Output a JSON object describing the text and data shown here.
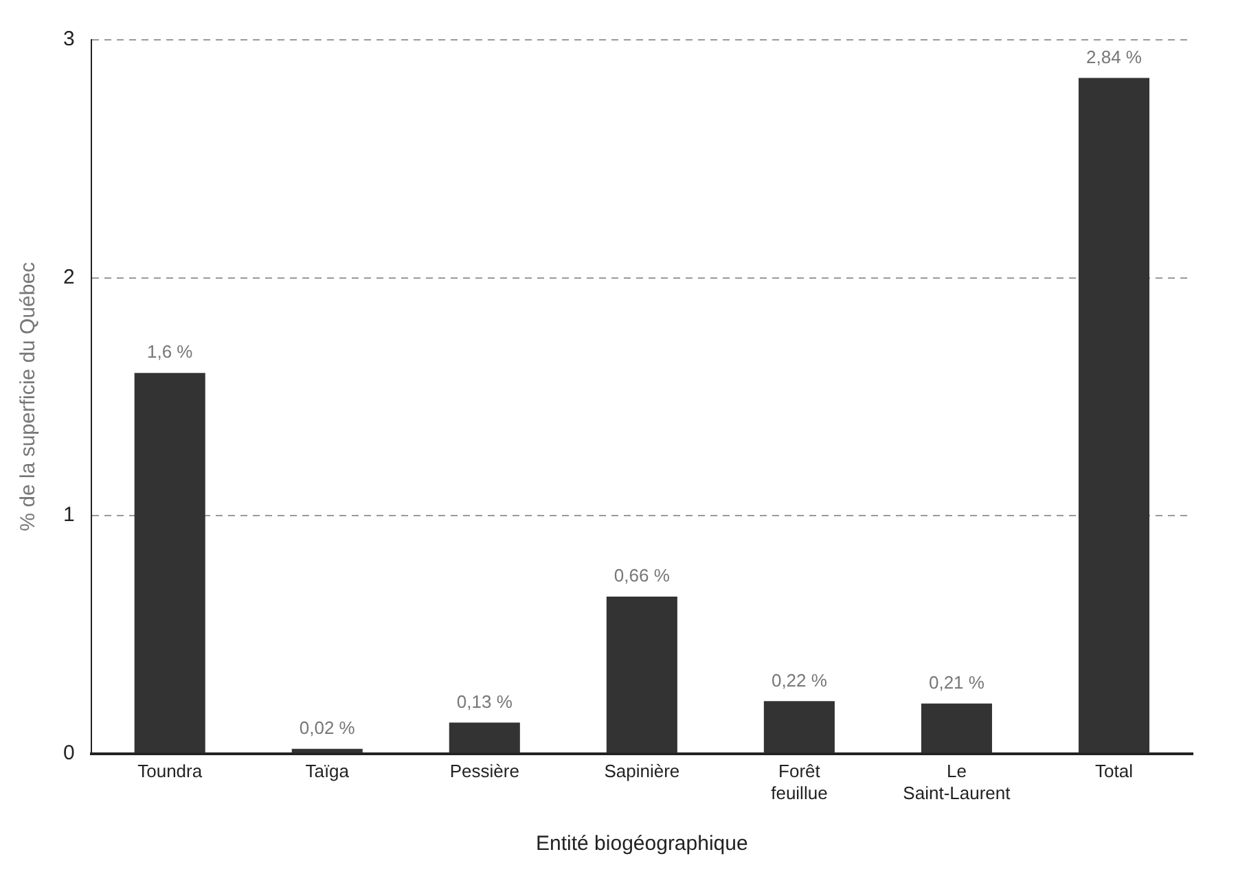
{
  "chart_data": {
    "type": "bar",
    "xlabel": "Entité biogéographique",
    "ylabel": "% de la superficie du Québec",
    "categories": [
      "Toundra",
      "Taïga",
      "Pessière",
      "Sapinière",
      "Forêt feuillue",
      "Le Saint-Laurent",
      "Total"
    ],
    "values": [
      1.6,
      0.02,
      0.13,
      0.66,
      0.22,
      0.21,
      2.84
    ],
    "value_labels": [
      "1,6 %",
      "0,02 %",
      "0,13 %",
      "0,66 %",
      "0,22 %",
      "0,21 %",
      "2,84 %"
    ],
    "color": "#333333",
    "ylim": [
      0,
      3
    ],
    "yticks": [
      0,
      1,
      2,
      3
    ],
    "grid": "y",
    "line_style": "dashed"
  }
}
